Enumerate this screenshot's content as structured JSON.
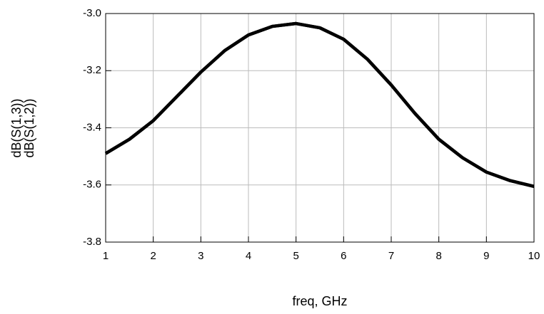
{
  "chart_data": {
    "type": "line",
    "xlabel": "freq, GHz",
    "ylabel": [
      "dB(S(1,3))",
      "dB(S(1,2))"
    ],
    "x": [
      1,
      1.5,
      2,
      2.5,
      3,
      3.5,
      4,
      4.5,
      5,
      5.5,
      6,
      6.5,
      7,
      7.5,
      8,
      8.5,
      9,
      9.5,
      10
    ],
    "series": [
      {
        "name": "dB(S(1,3))",
        "color": "#000000",
        "values": [
          -3.49,
          -3.44,
          -3.375,
          -3.29,
          -3.205,
          -3.13,
          -3.075,
          -3.045,
          -3.035,
          -3.05,
          -3.09,
          -3.16,
          -3.25,
          -3.35,
          -3.44,
          -3.505,
          -3.555,
          -3.585,
          -3.605
        ]
      },
      {
        "name": "dB(S(1,2))",
        "color": "#000000",
        "values": [
          -3.49,
          -3.44,
          -3.375,
          -3.29,
          -3.205,
          -3.13,
          -3.075,
          -3.045,
          -3.035,
          -3.05,
          -3.09,
          -3.16,
          -3.25,
          -3.35,
          -3.44,
          -3.505,
          -3.555,
          -3.585,
          -3.605
        ]
      }
    ],
    "xlim": [
      1,
      10
    ],
    "xticks": [
      1,
      2,
      3,
      4,
      5,
      6,
      7,
      8,
      9,
      10
    ],
    "ylim": [
      -3.8,
      -3.0
    ],
    "yticks": [
      {
        "value": -3.8,
        "label": "-3.8"
      },
      {
        "value": -3.6,
        "label": "-3.6"
      },
      {
        "value": -3.4,
        "label": "-3.4"
      },
      {
        "value": -3.2,
        "label": "-3.2"
      },
      {
        "value": -3,
        "label": "-3.0"
      }
    ],
    "grid": true
  }
}
